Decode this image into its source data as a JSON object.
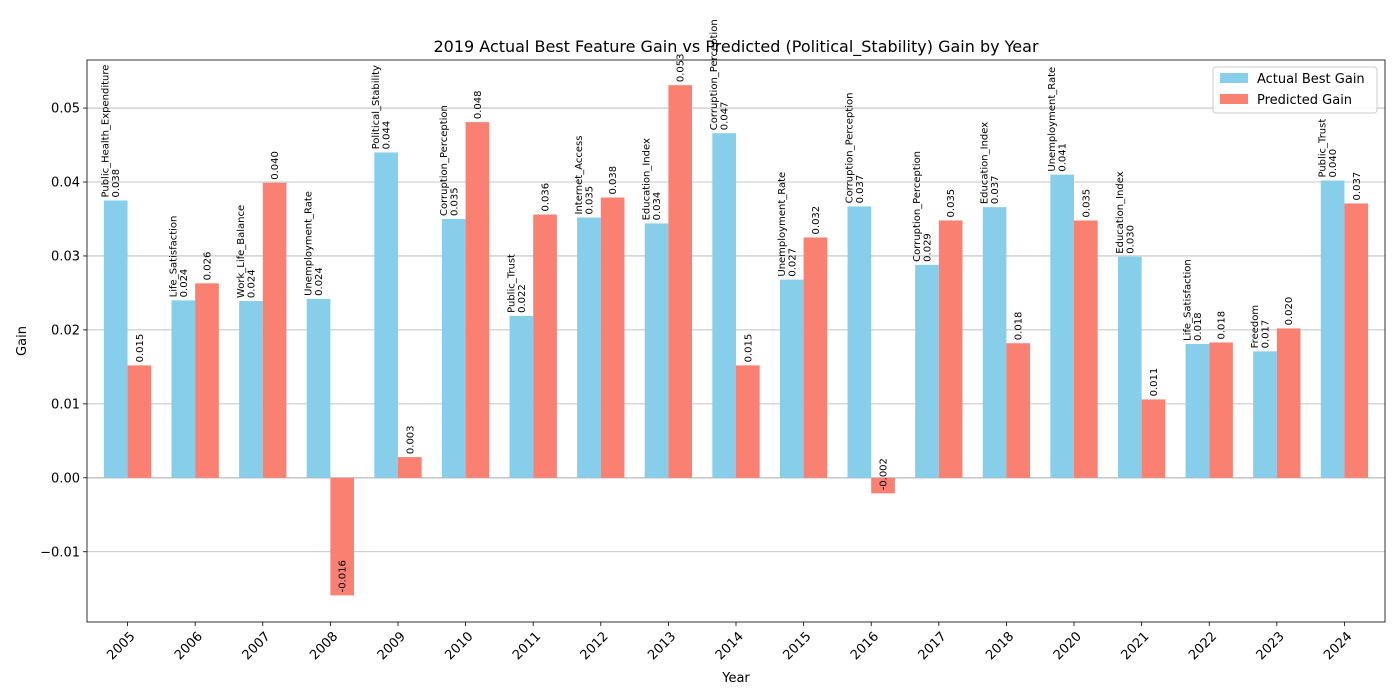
{
  "chart_data": {
    "type": "bar",
    "title": "2019 Actual Best Feature Gain vs Predicted (Political_Stability) Gain by Year",
    "xlabel": "Year",
    "ylabel": "Gain",
    "ylim": [
      -0.0195,
      0.0565
    ],
    "yticks": [
      -0.01,
      0.0,
      0.01,
      0.02,
      0.03,
      0.04,
      0.05
    ],
    "ytick_labels": [
      "−0.01",
      "0.00",
      "0.01",
      "0.02",
      "0.03",
      "0.04",
      "0.05"
    ],
    "grid": "y-axis",
    "legend_position": "top-right",
    "categories": [
      "2005",
      "2006",
      "2007",
      "2008",
      "2009",
      "2010",
      "2011",
      "2012",
      "2013",
      "2014",
      "2015",
      "2016",
      "2017",
      "2018",
      "2020",
      "2021",
      "2022",
      "2023",
      "2024"
    ],
    "series": [
      {
        "name": "Actual Best Gain",
        "color": "#87ceeb",
        "values": [
          0.0375,
          0.024,
          0.0239,
          0.0242,
          0.044,
          0.035,
          0.0219,
          0.0352,
          0.0344,
          0.0466,
          0.0268,
          0.0367,
          0.0288,
          0.0366,
          0.041,
          0.0299,
          0.0181,
          0.0171,
          0.0402
        ],
        "value_labels": [
          "0.038",
          "0.024",
          "0.024",
          "0.024",
          "0.044",
          "0.035",
          "0.022",
          "0.035",
          "0.034",
          "0.047",
          "0.027",
          "0.037",
          "0.029",
          "0.037",
          "0.041",
          "0.030",
          "0.018",
          "0.017",
          "0.040"
        ],
        "feature_labels": [
          "Public_Health_Expenditure",
          "Life_Satisfaction",
          "Work_Life_Balance",
          "Unemployment_Rate",
          "Political_Stability",
          "Corruption_Perception",
          "Public_Trust",
          "Internet_Access",
          "Education_Index",
          "Corruption_Perception",
          "Unemployment_Rate",
          "Corruption_Perception",
          "Corruption_Perception",
          "Education_Index",
          "Unemployment_Rate",
          "Education_Index",
          "Life_Satisfaction",
          "Freedom",
          "Public_Trust"
        ]
      },
      {
        "name": "Predicted Gain",
        "color": "#fa8072",
        "values": [
          0.0152,
          0.0263,
          0.0399,
          -0.0159,
          0.0028,
          0.0481,
          0.0356,
          0.0379,
          0.0531,
          0.0152,
          0.0325,
          -0.0021,
          0.0348,
          0.0182,
          0.0348,
          0.0106,
          0.0183,
          0.0202,
          0.0371
        ],
        "value_labels": [
          "0.015",
          "0.026",
          "0.040",
          "-0.016",
          "0.003",
          "0.048",
          "0.036",
          "0.038",
          "0.053",
          "0.015",
          "0.032",
          "-0.002",
          "0.035",
          "0.018",
          "0.035",
          "0.011",
          "0.018",
          "0.020",
          "0.037"
        ]
      }
    ]
  }
}
